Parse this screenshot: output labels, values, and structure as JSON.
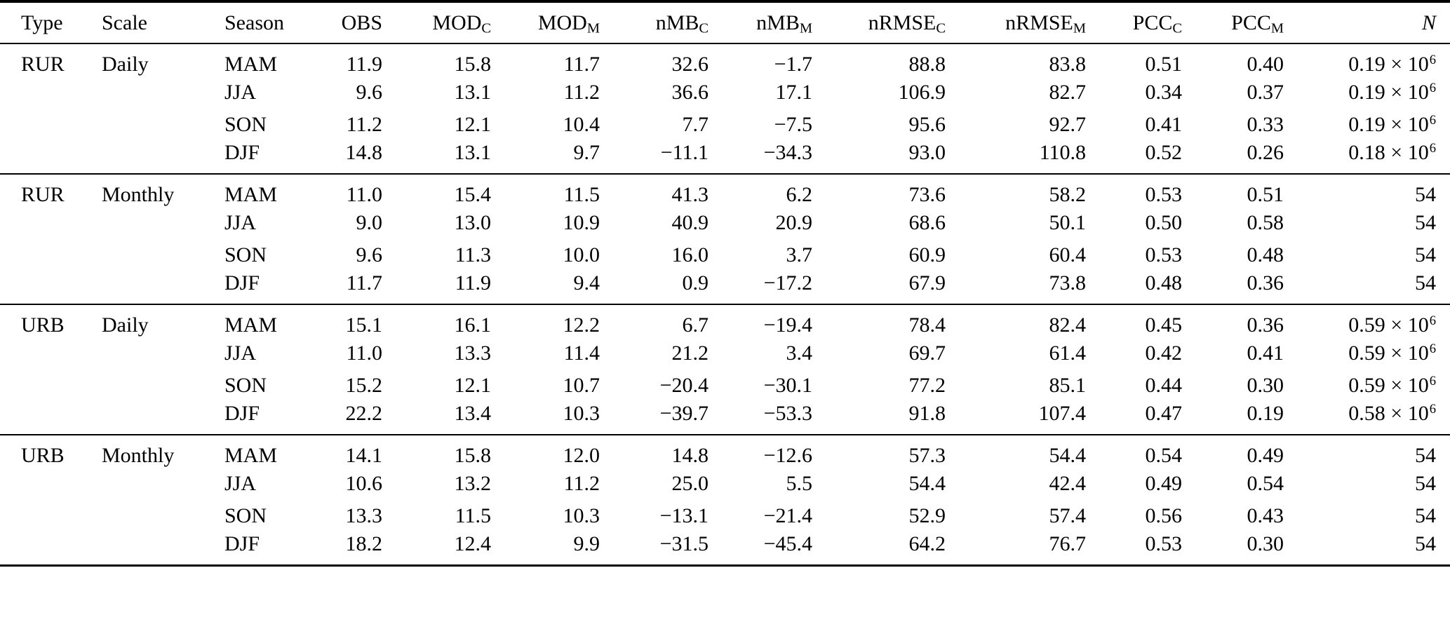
{
  "page": {
    "background": "#ffffff",
    "text_color": "#000000"
  },
  "table": {
    "headers": [
      {
        "key": "type",
        "label": "Type",
        "sub": "",
        "align": "left",
        "italic": false
      },
      {
        "key": "scale",
        "label": "Scale",
        "sub": "",
        "align": "left",
        "italic": false
      },
      {
        "key": "season",
        "label": "Season",
        "sub": "",
        "align": "left",
        "italic": false
      },
      {
        "key": "obs",
        "label": "OBS",
        "sub": "",
        "align": "right",
        "italic": false
      },
      {
        "key": "mod_c",
        "label": "MOD",
        "sub": "C",
        "align": "right",
        "italic": false
      },
      {
        "key": "mod_m",
        "label": "MOD",
        "sub": "M",
        "align": "right",
        "italic": false
      },
      {
        "key": "nmb_c",
        "label": "nMB",
        "sub": "C",
        "align": "right",
        "italic": false
      },
      {
        "key": "nmb_m",
        "label": "nMB",
        "sub": "M",
        "align": "right",
        "italic": false
      },
      {
        "key": "nrmse_c",
        "label": "nRMSE",
        "sub": "C",
        "align": "right",
        "italic": false
      },
      {
        "key": "nrmse_m",
        "label": "nRMSE",
        "sub": "M",
        "align": "right",
        "italic": false
      },
      {
        "key": "pcc_c",
        "label": "PCC",
        "sub": "C",
        "align": "right",
        "italic": false
      },
      {
        "key": "pcc_m",
        "label": "PCC",
        "sub": "M",
        "align": "right",
        "italic": false
      },
      {
        "key": "n",
        "label": "N",
        "sub": "",
        "align": "right",
        "italic": true
      }
    ],
    "value_keys": [
      "obs",
      "mod_c",
      "mod_m",
      "nmb_c",
      "nmb_m",
      "nrmse_c",
      "nrmse_m",
      "pcc_c",
      "pcc_m"
    ],
    "groups": [
      {
        "type": "RUR",
        "scale": "Daily",
        "rows": [
          {
            "season": "MAM",
            "values": [
              "11.9",
              "15.8",
              "11.7",
              "32.6",
              "−1.7",
              "88.8",
              "83.8",
              "0.51",
              "0.40"
            ],
            "n": {
              "base": "0.19 × 10",
              "sup": "6"
            }
          },
          {
            "season": "JJA",
            "values": [
              "9.6",
              "13.1",
              "11.2",
              "36.6",
              "17.1",
              "106.9",
              "82.7",
              "0.34",
              "0.37"
            ],
            "n": {
              "base": "0.19 × 10",
              "sup": "6"
            }
          },
          {
            "season": "SON",
            "values": [
              "11.2",
              "12.1",
              "10.4",
              "7.7",
              "−7.5",
              "95.6",
              "92.7",
              "0.41",
              "0.33"
            ],
            "n": {
              "base": "0.19 × 10",
              "sup": "6"
            }
          },
          {
            "season": "DJF",
            "values": [
              "14.8",
              "13.1",
              "9.7",
              "−11.1",
              "−34.3",
              "93.0",
              "110.8",
              "0.52",
              "0.26"
            ],
            "n": {
              "base": "0.18 × 10",
              "sup": "6"
            }
          }
        ]
      },
      {
        "type": "RUR",
        "scale": "Monthly",
        "rows": [
          {
            "season": "MAM",
            "values": [
              "11.0",
              "15.4",
              "11.5",
              "41.3",
              "6.2",
              "73.6",
              "58.2",
              "0.53",
              "0.51"
            ],
            "n": {
              "base": "54",
              "sup": ""
            }
          },
          {
            "season": "JJA",
            "values": [
              "9.0",
              "13.0",
              "10.9",
              "40.9",
              "20.9",
              "68.6",
              "50.1",
              "0.50",
              "0.58"
            ],
            "n": {
              "base": "54",
              "sup": ""
            }
          },
          {
            "season": "SON",
            "values": [
              "9.6",
              "11.3",
              "10.0",
              "16.0",
              "3.7",
              "60.9",
              "60.4",
              "0.53",
              "0.48"
            ],
            "n": {
              "base": "54",
              "sup": ""
            }
          },
          {
            "season": "DJF",
            "values": [
              "11.7",
              "11.9",
              "9.4",
              "0.9",
              "−17.2",
              "67.9",
              "73.8",
              "0.48",
              "0.36"
            ],
            "n": {
              "base": "54",
              "sup": ""
            }
          }
        ]
      },
      {
        "type": "URB",
        "scale": "Daily",
        "rows": [
          {
            "season": "MAM",
            "values": [
              "15.1",
              "16.1",
              "12.2",
              "6.7",
              "−19.4",
              "78.4",
              "82.4",
              "0.45",
              "0.36"
            ],
            "n": {
              "base": "0.59 × 10",
              "sup": "6"
            }
          },
          {
            "season": "JJA",
            "values": [
              "11.0",
              "13.3",
              "11.4",
              "21.2",
              "3.4",
              "69.7",
              "61.4",
              "0.42",
              "0.41"
            ],
            "n": {
              "base": "0.59 × 10",
              "sup": "6"
            }
          },
          {
            "season": "SON",
            "values": [
              "15.2",
              "12.1",
              "10.7",
              "−20.4",
              "−30.1",
              "77.2",
              "85.1",
              "0.44",
              "0.30"
            ],
            "n": {
              "base": "0.59 × 10",
              "sup": "6"
            }
          },
          {
            "season": "DJF",
            "values": [
              "22.2",
              "13.4",
              "10.3",
              "−39.7",
              "−53.3",
              "91.8",
              "107.4",
              "0.47",
              "0.19"
            ],
            "n": {
              "base": "0.58 × 10",
              "sup": "6"
            }
          }
        ]
      },
      {
        "type": "URB",
        "scale": "Monthly",
        "rows": [
          {
            "season": "MAM",
            "values": [
              "14.1",
              "15.8",
              "12.0",
              "14.8",
              "−12.6",
              "57.3",
              "54.4",
              "0.54",
              "0.49"
            ],
            "n": {
              "base": "54",
              "sup": ""
            }
          },
          {
            "season": "JJA",
            "values": [
              "10.6",
              "13.2",
              "11.2",
              "25.0",
              "5.5",
              "54.4",
              "42.4",
              "0.49",
              "0.54"
            ],
            "n": {
              "base": "54",
              "sup": ""
            }
          },
          {
            "season": "SON",
            "values": [
              "13.3",
              "11.5",
              "10.3",
              "−13.1",
              "−21.4",
              "52.9",
              "57.4",
              "0.56",
              "0.43"
            ],
            "n": {
              "base": "54",
              "sup": ""
            }
          },
          {
            "season": "DJF",
            "values": [
              "18.2",
              "12.4",
              "9.9",
              "−31.5",
              "−45.4",
              "64.2",
              "76.7",
              "0.53",
              "0.30"
            ],
            "n": {
              "base": "54",
              "sup": ""
            }
          }
        ]
      }
    ]
  }
}
